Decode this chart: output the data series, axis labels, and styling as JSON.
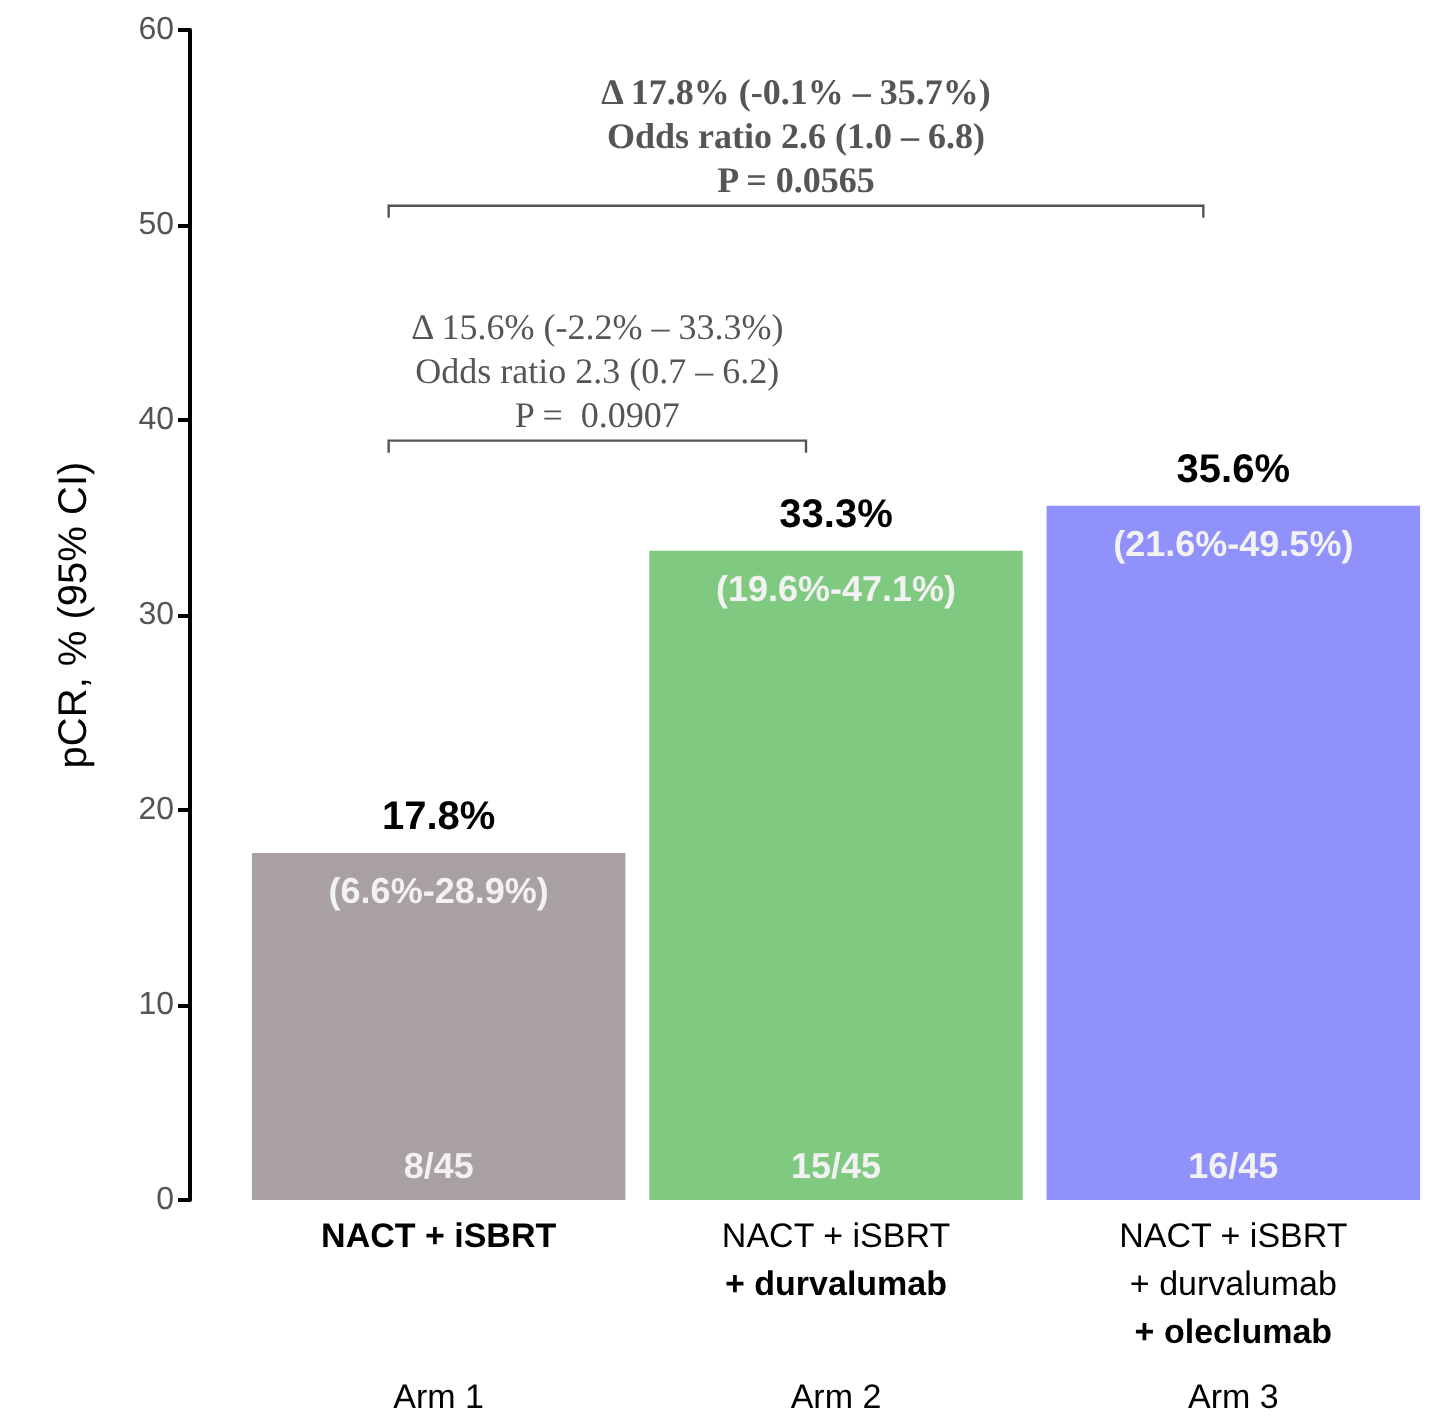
{
  "chart_data": {
    "type": "bar",
    "ylabel": "pCR, % (95% CI)",
    "categories": [
      "NACT + iSBRT",
      "NACT + iSBRT\n+ durvalumab",
      "NACT + iSBRT\n+ durvalumab\n+ oleclumab"
    ],
    "values": [
      17.8,
      33.3,
      35.6
    ],
    "colors": [
      "#a8a0a2",
      "#80c980",
      "#9191fb"
    ],
    "value_labels": [
      "17.8%",
      "33.3%",
      "35.6%"
    ],
    "ylim": [
      0,
      60
    ],
    "yticks": [
      0,
      10,
      20,
      30,
      40,
      50,
      60
    ],
    "grid": false,
    "annotations": [
      {
        "text": "(6.6%-28.9%)",
        "x": "NACT + iSBRT",
        "y": 17.8
      },
      {
        "text": "(19.6%-47.1%)",
        "x": "NACT + iSBRT\n+ durvalumab",
        "y": 33.3
      },
      {
        "text": "(21.6%-49.5%)",
        "x": "NACT + iSBRT\n+ durvalumab\n+ oleclumab",
        "y": 35.6
      },
      {
        "text": "8/45",
        "x": "NACT + iSBRT",
        "y": 0
      },
      {
        "text": "15/45",
        "x": "NACT + iSBRT\n+ durvalumab",
        "y": 0
      },
      {
        "text": "16/45",
        "x": "NACT + iSBRT\n+ durvalumab\n+ oleclumab",
        "y": 0
      },
      "Arm 1",
      "Arm 2",
      "Arm 3",
      "Δ 15.6% (-2.2% – 33.3%)\nOdds ratio 2.3 (0.7 – 6.2)\nP =  0.0907",
      "Δ 17.8% (-0.1% – 35.7%)\nOdds ratio 2.6 (1.0 – 6.8)\nP = 0.0565"
    ]
  }
}
